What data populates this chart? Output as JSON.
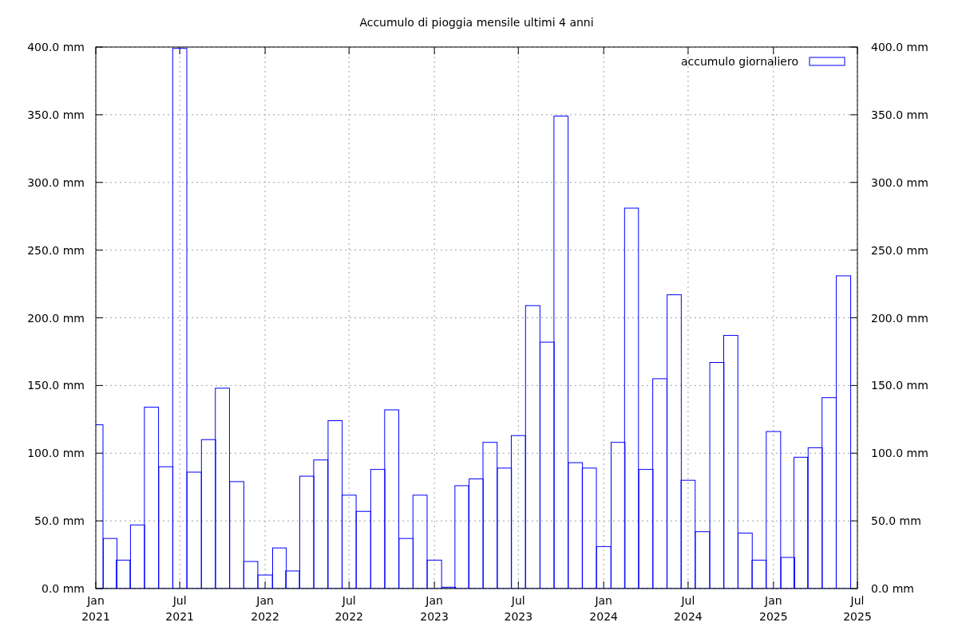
{
  "chart_data": {
    "type": "bar",
    "title": "Accumulo di pioggia mensile ultimi 4 anni",
    "x": [
      "2021-01",
      "2021-02",
      "2021-03",
      "2021-04",
      "2021-05",
      "2021-06",
      "2021-07",
      "2021-08",
      "2021-09",
      "2021-10",
      "2021-11",
      "2021-12",
      "2022-01",
      "2022-02",
      "2022-03",
      "2022-04",
      "2022-05",
      "2022-06",
      "2022-07",
      "2022-08",
      "2022-09",
      "2022-10",
      "2022-11",
      "2022-12",
      "2023-01",
      "2023-02",
      "2023-03",
      "2023-04",
      "2023-05",
      "2023-06",
      "2023-07",
      "2023-08",
      "2023-09",
      "2023-10",
      "2023-11",
      "2023-12",
      "2024-01",
      "2024-02",
      "2024-03",
      "2024-04",
      "2024-05",
      "2024-06",
      "2024-07",
      "2024-08",
      "2024-09",
      "2024-10",
      "2024-11",
      "2024-12",
      "2025-01",
      "2025-02",
      "2025-03",
      "2025-04",
      "2025-05",
      "2025-06"
    ],
    "series": [
      {
        "name": "accumulo giornaliero",
        "color": "#0000ff",
        "values": [
          121,
          37,
          21,
          47,
          134,
          90,
          399,
          86,
          110,
          148,
          79,
          20,
          10,
          30,
          13,
          83,
          95,
          124,
          69,
          57,
          88,
          132,
          37,
          69,
          21,
          1,
          76,
          81,
          108,
          89,
          113,
          209,
          182,
          349,
          93,
          89,
          31,
          108,
          281,
          88,
          155,
          217,
          80,
          42,
          167,
          187,
          41,
          21,
          116,
          23,
          97,
          104,
          141,
          231
        ]
      }
    ],
    "xlim": [
      "2021-01-01",
      "2025-07-01"
    ],
    "xticks": [
      {
        "value": "2021-01-01",
        "label": "Jan 2021"
      },
      {
        "value": "2021-07-01",
        "label": "Jul 2021"
      },
      {
        "value": "2022-01-01",
        "label": "Jan 2022"
      },
      {
        "value": "2022-07-01",
        "label": "Jul 2022"
      },
      {
        "value": "2023-01-01",
        "label": "Jan 2023"
      },
      {
        "value": "2023-07-01",
        "label": "Jul 2023"
      },
      {
        "value": "2024-01-01",
        "label": "Jan 2024"
      },
      {
        "value": "2024-07-01",
        "label": "Jul 2024"
      },
      {
        "value": "2025-01-01",
        "label": "Jan 2025"
      },
      {
        "value": "2025-07-01",
        "label": "Jul 2025"
      }
    ],
    "ylim": [
      0,
      400
    ],
    "yticks": [
      {
        "value": 0,
        "label": "0.0 mm"
      },
      {
        "value": 50,
        "label": "50.0 mm"
      },
      {
        "value": 100,
        "label": "100.0 mm"
      },
      {
        "value": 150,
        "label": "150.0 mm"
      },
      {
        "value": 200,
        "label": "200.0 mm"
      },
      {
        "value": 250,
        "label": "250.0 mm"
      },
      {
        "value": 300,
        "label": "300.0 mm"
      },
      {
        "value": 350,
        "label": "350.0 mm"
      },
      {
        "value": 400,
        "label": "400.0 mm"
      }
    ],
    "y2lim": [
      0,
      400
    ],
    "y2ticks": [
      {
        "value": 0,
        "label": "0.0 mm"
      },
      {
        "value": 50,
        "label": "50.0 mm"
      },
      {
        "value": 100,
        "label": "100.0 mm"
      },
      {
        "value": 150,
        "label": "150.0 mm"
      },
      {
        "value": 200,
        "label": "200.0 mm"
      },
      {
        "value": 250,
        "label": "250.0 mm"
      },
      {
        "value": 300,
        "label": "300.0 mm"
      },
      {
        "value": 350,
        "label": "350.0 mm"
      },
      {
        "value": 400,
        "label": "400.0 mm"
      }
    ],
    "grid": true,
    "legend": "top right"
  }
}
